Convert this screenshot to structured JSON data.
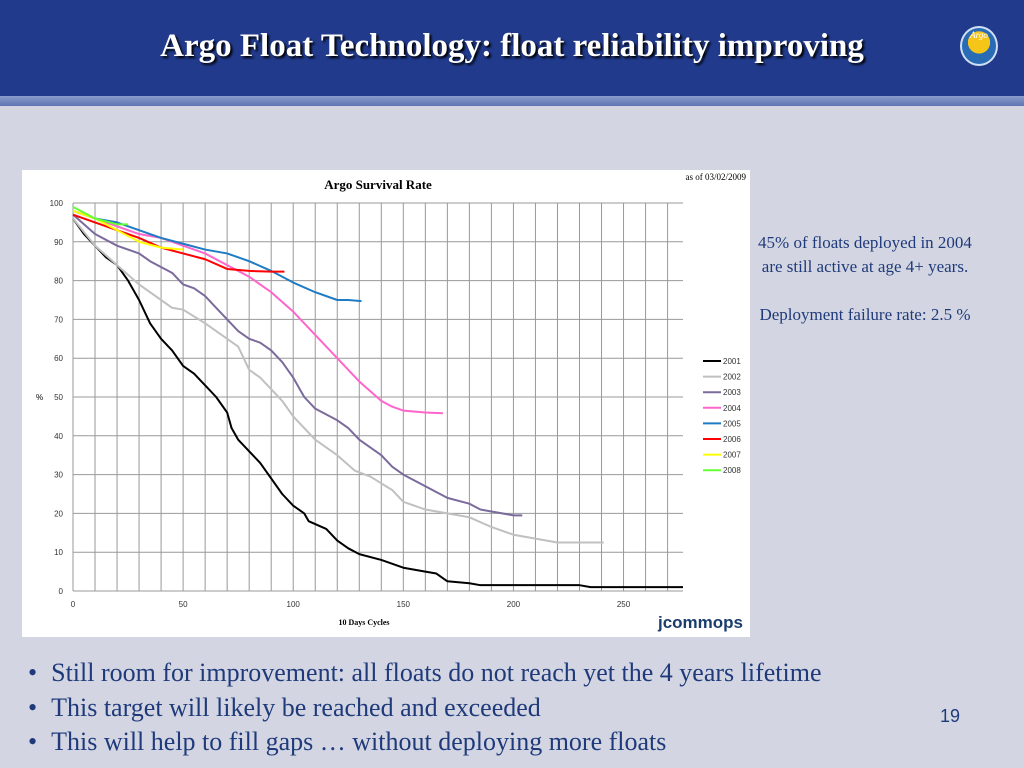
{
  "slide": {
    "title": "Argo Float Technology: float reliability improving",
    "logo_text": "Argo",
    "notes": [
      "45% of floats deployed in 2004",
      "are still active at age 4+ years.",
      "Deployment failure rate:  2.5 %"
    ],
    "bullets": [
      "Still room for improvement: all floats do not reach yet the 4 years lifetime",
      "This target will likely be reached and exceeded",
      "This will help to fill gaps … without deploying more floats"
    ],
    "page_number": "19",
    "watermark": "jcommops"
  },
  "chart_data": {
    "type": "line",
    "title": "Argo Survival Rate",
    "annotation": "as of 03/02/2009",
    "xlabel": "10 Days Cycles",
    "ylabel": "%",
    "xlim": [
      0,
      277
    ],
    "ylim": [
      0,
      100
    ],
    "xticks": [
      0,
      50,
      100,
      150,
      200,
      250
    ],
    "yticks": [
      0,
      10,
      20,
      30,
      40,
      50,
      60,
      70,
      80,
      90,
      100
    ],
    "grid": true,
    "legend_position": "right",
    "series": [
      {
        "name": "2001",
        "color": "#000000",
        "points": [
          [
            0,
            96
          ],
          [
            5,
            92
          ],
          [
            10,
            89
          ],
          [
            15,
            86
          ],
          [
            20,
            84
          ],
          [
            25,
            80
          ],
          [
            30,
            75
          ],
          [
            35,
            69
          ],
          [
            40,
            65
          ],
          [
            45,
            62
          ],
          [
            50,
            58
          ],
          [
            55,
            56
          ],
          [
            60,
            53
          ],
          [
            65,
            50
          ],
          [
            70,
            46
          ],
          [
            72,
            42
          ],
          [
            75,
            39
          ],
          [
            80,
            36
          ],
          [
            85,
            33
          ],
          [
            90,
            29
          ],
          [
            95,
            25
          ],
          [
            100,
            22
          ],
          [
            105,
            20
          ],
          [
            107,
            18
          ],
          [
            115,
            16
          ],
          [
            120,
            13
          ],
          [
            125,
            11
          ],
          [
            130,
            9.5
          ],
          [
            140,
            8
          ],
          [
            150,
            6
          ],
          [
            160,
            5
          ],
          [
            165,
            4.5
          ],
          [
            170,
            2.5
          ],
          [
            180,
            2
          ],
          [
            185,
            1.5
          ],
          [
            230,
            1.5
          ],
          [
            235,
            1
          ],
          [
            277,
            1
          ]
        ]
      },
      {
        "name": "2002",
        "color": "#c0c0c0",
        "points": [
          [
            0,
            96
          ],
          [
            10,
            89
          ],
          [
            20,
            84
          ],
          [
            30,
            79
          ],
          [
            40,
            75
          ],
          [
            45,
            73
          ],
          [
            50,
            72.5
          ],
          [
            60,
            69
          ],
          [
            70,
            65
          ],
          [
            75,
            63
          ],
          [
            80,
            57
          ],
          [
            85,
            55
          ],
          [
            90,
            52
          ],
          [
            95,
            49
          ],
          [
            100,
            45
          ],
          [
            110,
            39
          ],
          [
            120,
            35
          ],
          [
            128,
            31
          ],
          [
            135,
            29.5
          ],
          [
            145,
            26
          ],
          [
            150,
            23
          ],
          [
            160,
            21
          ],
          [
            170,
            20
          ],
          [
            180,
            19
          ],
          [
            190,
            16.5
          ],
          [
            200,
            14.5
          ],
          [
            210,
            13.5
          ],
          [
            220,
            12.5
          ],
          [
            241,
            12.5
          ]
        ]
      },
      {
        "name": "2003",
        "color": "#7b6a9c",
        "points": [
          [
            0,
            97
          ],
          [
            10,
            92
          ],
          [
            20,
            89
          ],
          [
            30,
            87
          ],
          [
            35,
            85
          ],
          [
            45,
            82
          ],
          [
            50,
            79
          ],
          [
            55,
            78
          ],
          [
            60,
            76
          ],
          [
            65,
            73
          ],
          [
            70,
            70
          ],
          [
            75,
            67
          ],
          [
            80,
            65
          ],
          [
            85,
            64
          ],
          [
            90,
            62
          ],
          [
            95,
            59
          ],
          [
            100,
            55
          ],
          [
            105,
            50
          ],
          [
            110,
            47
          ],
          [
            120,
            44
          ],
          [
            125,
            42
          ],
          [
            130,
            39
          ],
          [
            140,
            35
          ],
          [
            145,
            32
          ],
          [
            150,
            30
          ],
          [
            160,
            27
          ],
          [
            170,
            24
          ],
          [
            180,
            22.5
          ],
          [
            185,
            21
          ],
          [
            190,
            20.5
          ],
          [
            200,
            19.5
          ],
          [
            204,
            19.5
          ]
        ]
      },
      {
        "name": "2004",
        "color": "#ff66cc",
        "points": [
          [
            0,
            98
          ],
          [
            10,
            96
          ],
          [
            20,
            94
          ],
          [
            30,
            92
          ],
          [
            40,
            91
          ],
          [
            50,
            89
          ],
          [
            60,
            87
          ],
          [
            70,
            84
          ],
          [
            80,
            81
          ],
          [
            90,
            77
          ],
          [
            100,
            72
          ],
          [
            110,
            66
          ],
          [
            120,
            60
          ],
          [
            130,
            54
          ],
          [
            140,
            49
          ],
          [
            145,
            47.5
          ],
          [
            150,
            46.5
          ],
          [
            160,
            46
          ],
          [
            168,
            45.8
          ]
        ]
      },
      {
        "name": "2005",
        "color": "#1f7bc4",
        "points": [
          [
            0,
            98
          ],
          [
            10,
            96
          ],
          [
            20,
            95
          ],
          [
            30,
            93
          ],
          [
            40,
            91
          ],
          [
            50,
            89.5
          ],
          [
            60,
            88
          ],
          [
            70,
            87
          ],
          [
            80,
            85
          ],
          [
            90,
            82.5
          ],
          [
            100,
            79.5
          ],
          [
            110,
            77
          ],
          [
            120,
            75
          ],
          [
            125,
            75
          ],
          [
            131,
            74.7
          ]
        ]
      },
      {
        "name": "2006",
        "color": "#ff0000",
        "points": [
          [
            0,
            97
          ],
          [
            10,
            95
          ],
          [
            20,
            93
          ],
          [
            30,
            91
          ],
          [
            40,
            88.5
          ],
          [
            50,
            87
          ],
          [
            60,
            85.5
          ],
          [
            70,
            83
          ],
          [
            80,
            82.5
          ],
          [
            90,
            82.3
          ],
          [
            96,
            82.3
          ]
        ]
      },
      {
        "name": "2007",
        "color": "#ffff00",
        "points": [
          [
            0,
            98
          ],
          [
            10,
            96
          ],
          [
            20,
            93
          ],
          [
            30,
            90
          ],
          [
            40,
            88.5
          ],
          [
            50,
            88
          ]
        ]
      },
      {
        "name": "2008",
        "color": "#66ff33",
        "points": [
          [
            0,
            99
          ],
          [
            10,
            96
          ],
          [
            20,
            94.5
          ],
          [
            25,
            94.5
          ]
        ]
      }
    ]
  }
}
